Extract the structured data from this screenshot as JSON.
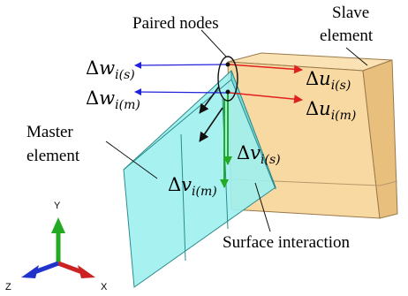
{
  "labels": {
    "paired_nodes": "Paired nodes",
    "slave_line1": "Slave",
    "slave_line2": "element",
    "master_line1": "Master",
    "master_line2": "element",
    "surface_interaction": "Surface interaction"
  },
  "vectors": {
    "dw_is": {
      "delta": "Δ",
      "sym": "w",
      "sub": "i(s)"
    },
    "dw_im": {
      "delta": "Δ",
      "sym": "w",
      "sub": "i(m)"
    },
    "du_is": {
      "delta": "Δ",
      "sym": "u",
      "sub": "i(s)"
    },
    "du_im": {
      "delta": "Δ",
      "sym": "u",
      "sub": "i(m)"
    },
    "dv_is": {
      "delta": "Δ",
      "sym": "v",
      "sub": "i(s)"
    },
    "dv_im": {
      "delta": "Δ",
      "sym": "v",
      "sub": "i(m)"
    }
  },
  "axes": {
    "y": "Y",
    "x": "X",
    "z": "Z"
  },
  "colors": {
    "master_fill": "#9ff0ef",
    "slave_fill": "#f8d9a2",
    "w_arrow": "#2222dd",
    "u_arrow": "#e02020",
    "v_arrow": "#22aa22",
    "black_arrow": "#111111",
    "axis_y": "#22aa22",
    "axis_x": "#cc2222",
    "axis_z": "#2233cc"
  }
}
